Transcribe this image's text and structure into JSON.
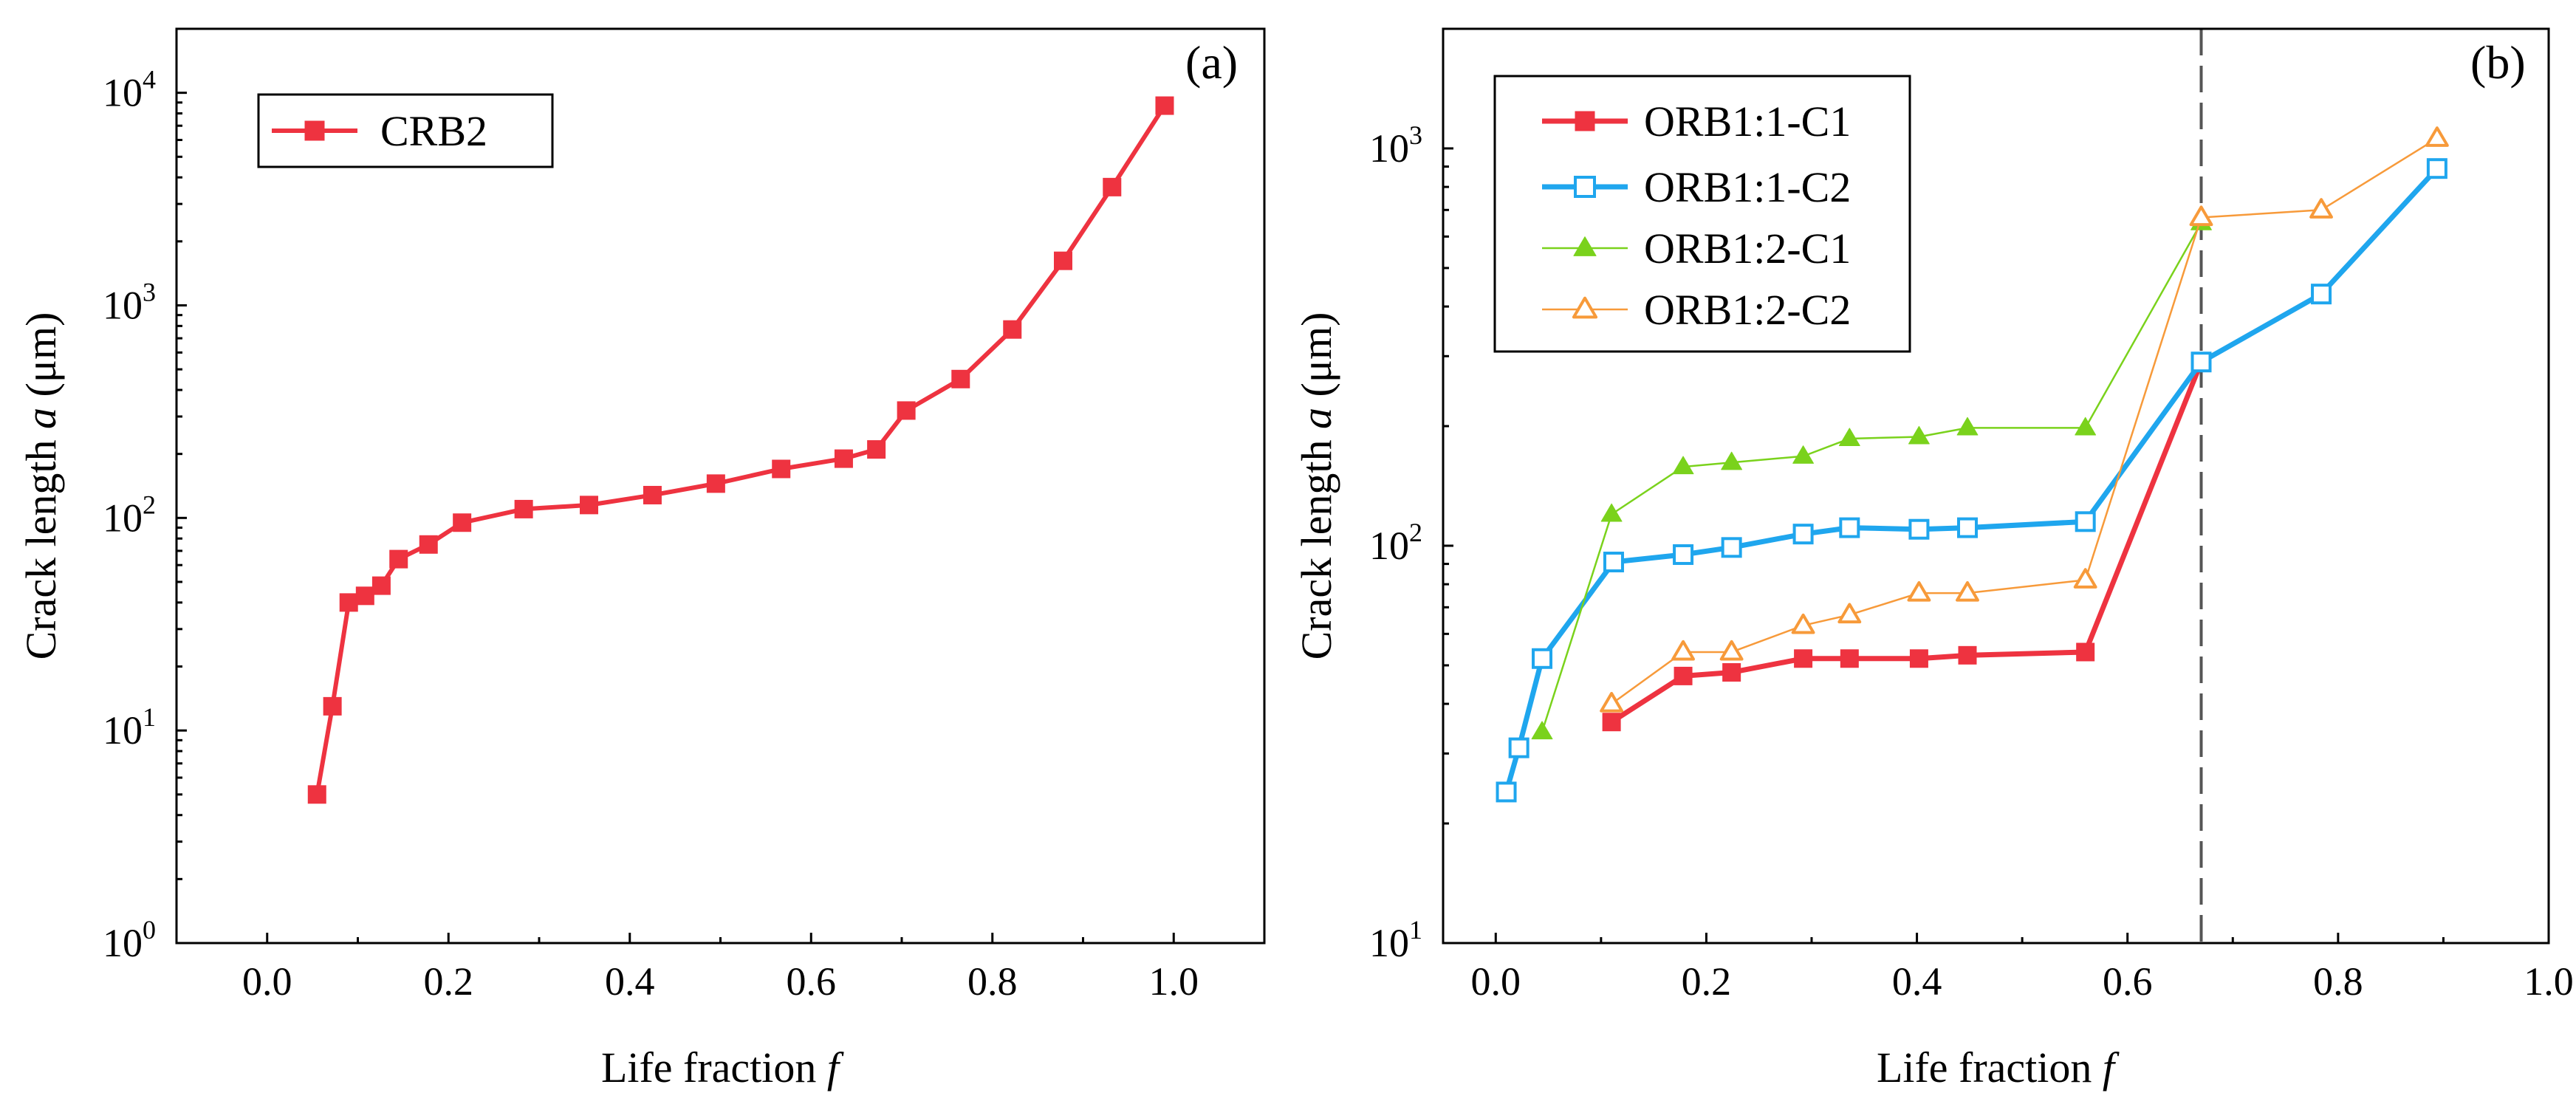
{
  "colors": {
    "red": "#ee3340",
    "blue": "#1fa6ee",
    "green": "#7ad21c",
    "orange": "#f79a3a",
    "dash": "#555555"
  },
  "chart_data": [
    {
      "type": "line",
      "panel_label": "(a)",
      "title": "",
      "xlabel_prefix": "Life fraction ",
      "xlabel_var": "f",
      "ylabel_prefix": "Crack length ",
      "ylabel_var": "a",
      "ylabel_suffix": " (μm)",
      "yscale": "log",
      "xlim": [
        -0.1,
        1.1
      ],
      "ylim": [
        1,
        20000
      ],
      "x_ticks": [
        0.0,
        0.2,
        0.4,
        0.6,
        0.8,
        1.0
      ],
      "x_tick_labels": [
        "0.0",
        "0.2",
        "0.4",
        "0.6",
        "0.8",
        "1.0"
      ],
      "y_ticks": [
        1,
        10,
        100,
        1000,
        10000
      ],
      "y_tick_exponents": [
        "0",
        "1",
        "2",
        "3",
        "4"
      ],
      "y_tick_base": "10",
      "legend_position": "top-left",
      "series": [
        {
          "name": "CRB2",
          "color": "#ee3340",
          "marker": "square-filled",
          "x": [
            0.055,
            0.072,
            0.09,
            0.108,
            0.126,
            0.145,
            0.178,
            0.215,
            0.283,
            0.355,
            0.425,
            0.495,
            0.567,
            0.636,
            0.672,
            0.705,
            0.765,
            0.822,
            0.878,
            0.932,
            0.99
          ],
          "y": [
            5,
            13,
            40,
            43,
            48,
            64,
            75,
            95,
            110,
            115,
            128,
            145,
            170,
            190,
            210,
            320,
            450,
            770,
            1620,
            3600,
            8700
          ]
        }
      ]
    },
    {
      "type": "line",
      "panel_label": "(b)",
      "title": "",
      "xlabel_prefix": "Life fraction ",
      "xlabel_var": "f",
      "ylabel_prefix": "Crack length ",
      "ylabel_var": "a",
      "ylabel_suffix": " (μm)",
      "yscale": "log",
      "xlim": [
        -0.05,
        1.0
      ],
      "ylim": [
        10,
        2000
      ],
      "x_ticks": [
        0.0,
        0.2,
        0.4,
        0.6,
        0.8,
        1.0
      ],
      "x_tick_labels": [
        "0.0",
        "0.2",
        "0.4",
        "0.6",
        "0.8",
        "1.0"
      ],
      "y_ticks": [
        10,
        100,
        1000
      ],
      "y_tick_exponents": [
        "1",
        "2",
        "3"
      ],
      "y_tick_base": "10",
      "vline_x": 0.67,
      "legend_position": "top-left",
      "series": [
        {
          "name": "ORB1:1-C1",
          "color": "#ee3340",
          "marker": "square-filled",
          "line_width": 7,
          "x": [
            0.11,
            0.178,
            0.224,
            0.292,
            0.336,
            0.402,
            0.448,
            0.56,
            0.67
          ],
          "y": [
            36,
            47,
            48,
            52,
            52,
            52,
            53,
            54,
            290
          ]
        },
        {
          "name": "ORB1:1-C2",
          "color": "#1fa6ee",
          "marker": "square-open",
          "line_width": 7,
          "x": [
            0.01,
            0.022,
            0.044,
            0.112,
            0.178,
            0.224,
            0.292,
            0.336,
            0.402,
            0.448,
            0.56,
            0.67,
            0.784,
            0.894
          ],
          "y": [
            24,
            31,
            52,
            91,
            95,
            99,
            107,
            111,
            110,
            111,
            115,
            290,
            430,
            890
          ]
        },
        {
          "name": "ORB1:2-C1",
          "color": "#7ad21c",
          "marker": "triangle-filled",
          "line_width": 2.5,
          "x": [
            0.044,
            0.11,
            0.178,
            0.224,
            0.292,
            0.336,
            0.402,
            0.448,
            0.56,
            0.67
          ],
          "y": [
            34,
            120,
            158,
            162,
            168,
            186,
            188,
            198,
            198,
            650
          ]
        },
        {
          "name": "ORB1:2-C2",
          "color": "#f79a3a",
          "marker": "triangle-open",
          "line_width": 2.5,
          "x": [
            0.11,
            0.178,
            0.224,
            0.292,
            0.336,
            0.402,
            0.448,
            0.56,
            0.67,
            0.784,
            0.894
          ],
          "y": [
            40,
            54,
            54,
            63,
            67,
            76,
            76,
            82,
            670,
            700,
            1060
          ]
        }
      ]
    }
  ]
}
